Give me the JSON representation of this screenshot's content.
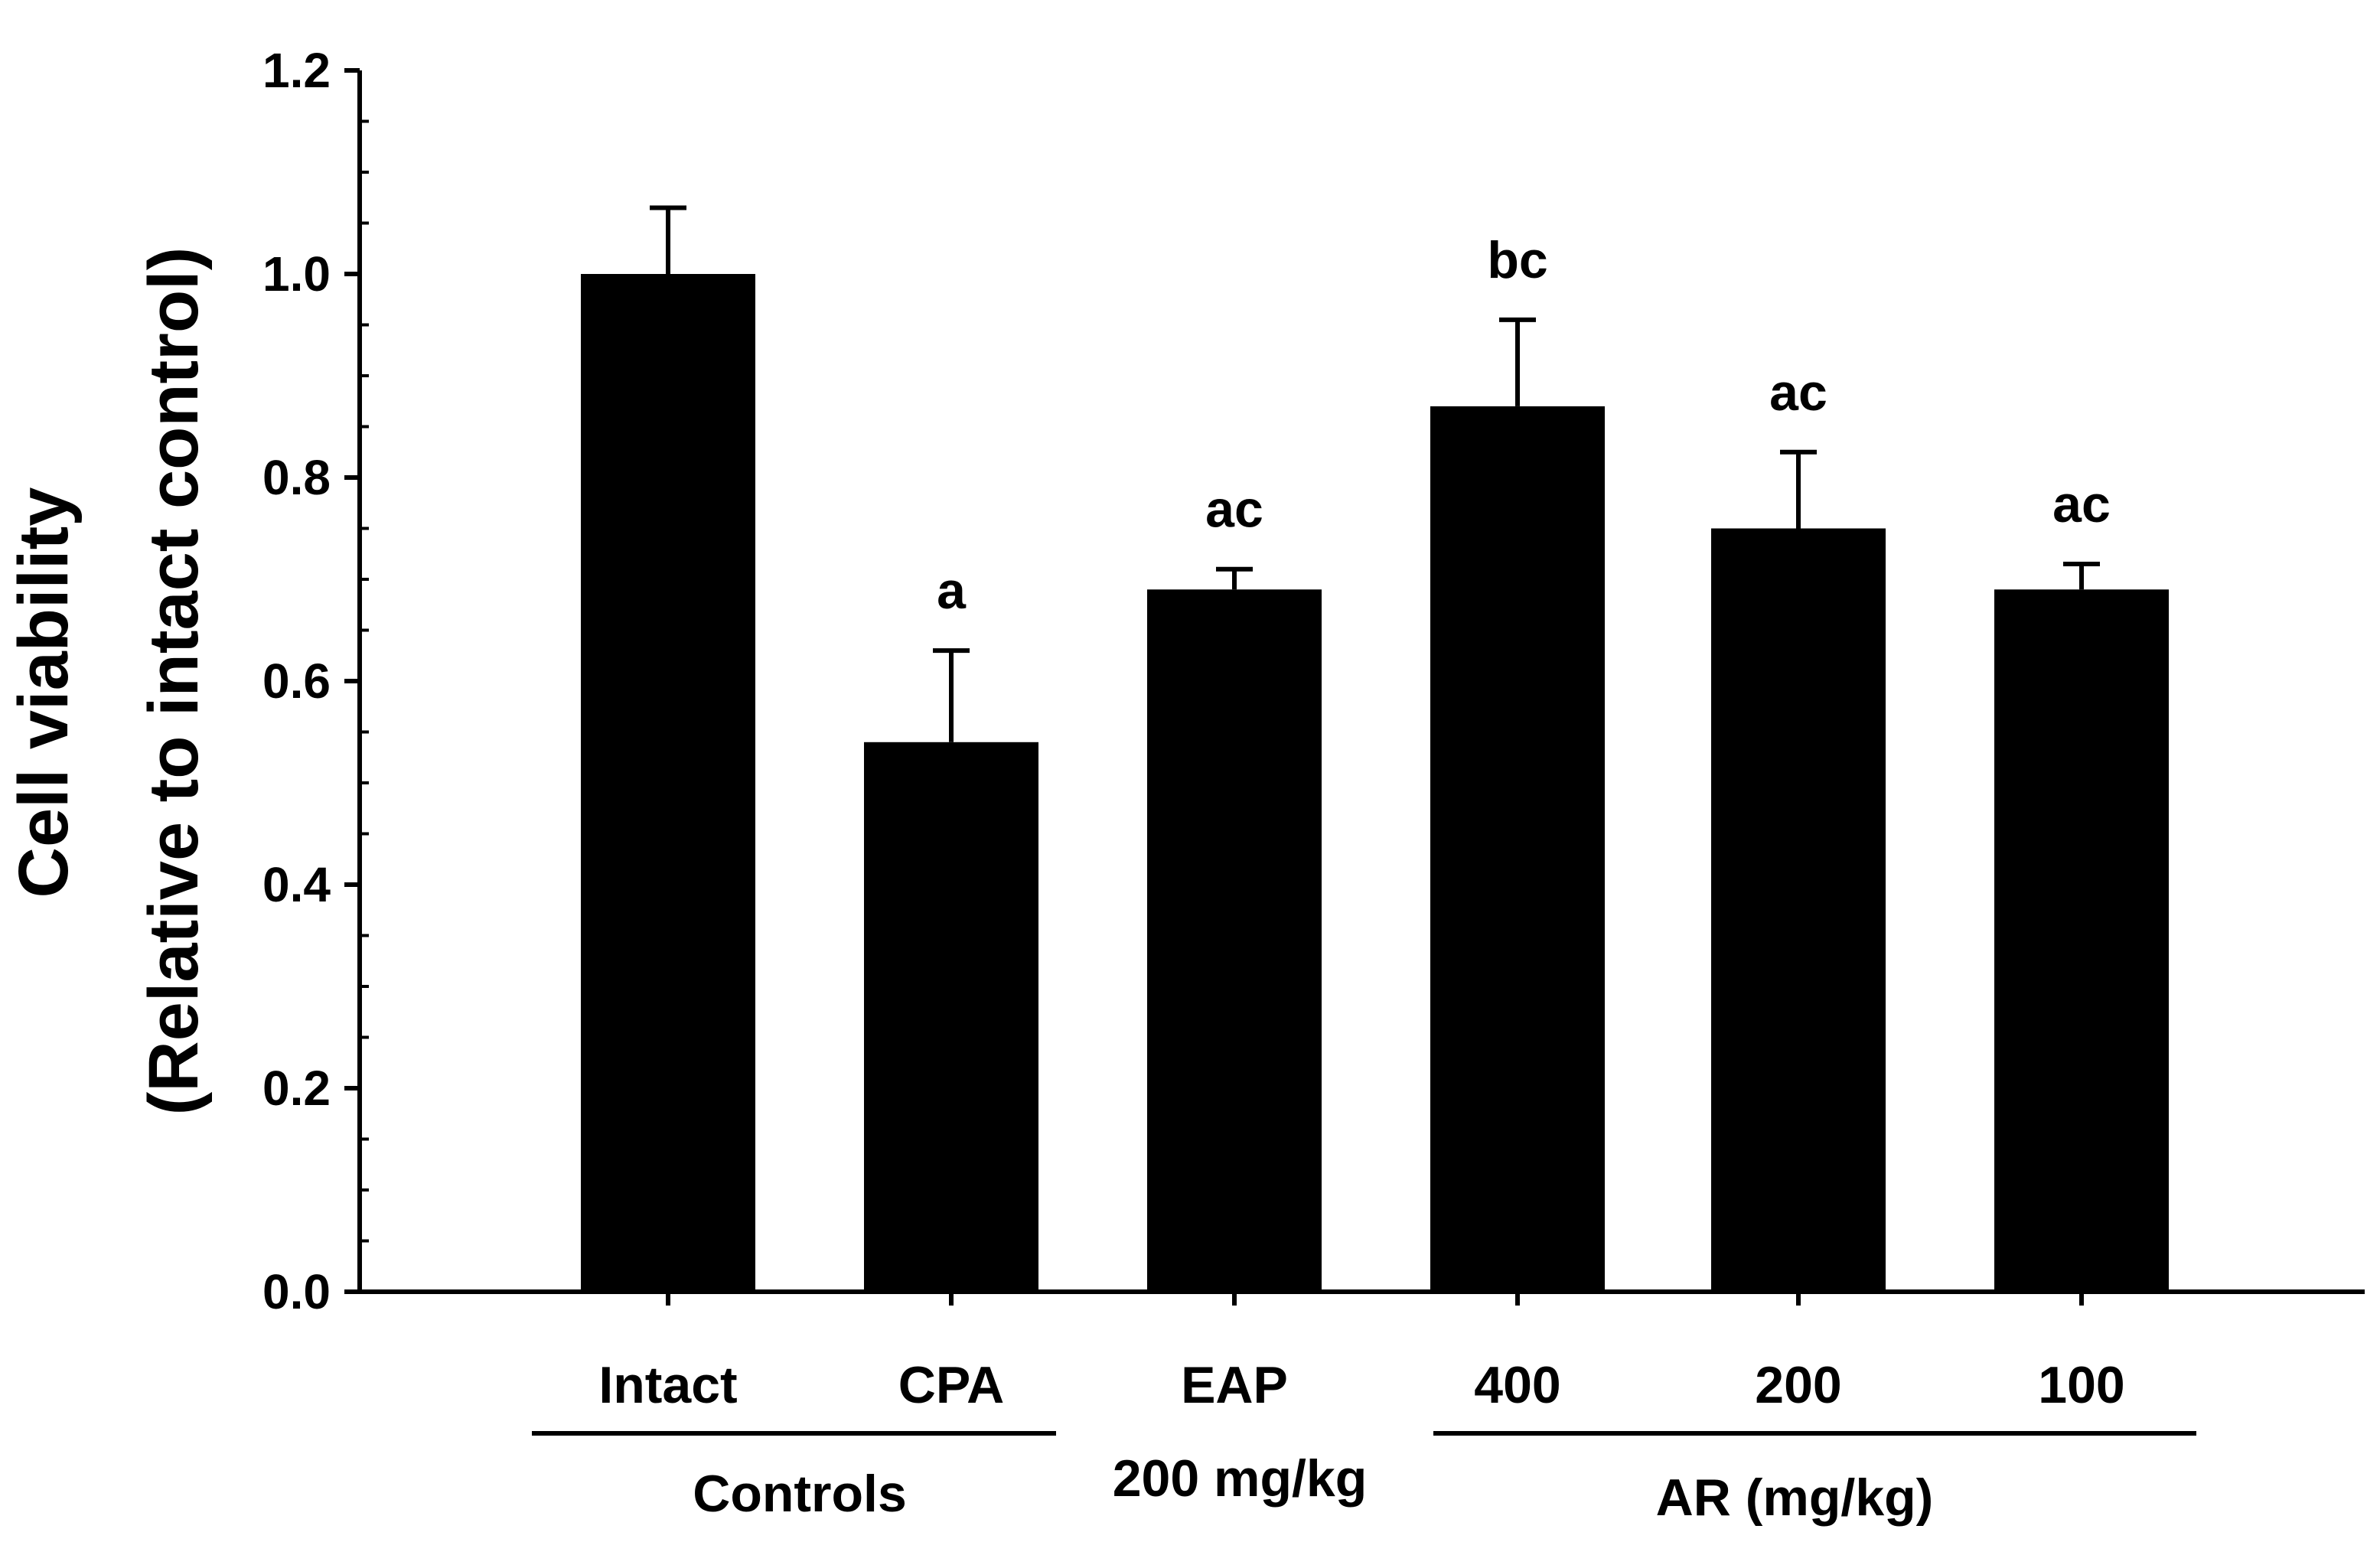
{
  "chart_data": {
    "type": "bar",
    "title": "",
    "ylabel_line1": "Cell viability",
    "ylabel_line2": "(Relative to intact control)",
    "xlabel": "",
    "ylim": [
      0.0,
      1.2
    ],
    "ytick_labels": [
      "0.0",
      "0.2",
      "0.4",
      "0.6",
      "0.8",
      "1.0",
      "1.2"
    ],
    "categories": [
      "Intact",
      "CPA",
      "EAP",
      "400",
      "200",
      "100"
    ],
    "values": [
      1.0,
      0.54,
      0.69,
      0.87,
      0.75,
      0.69
    ],
    "errors": [
      0.065,
      0.09,
      0.02,
      0.085,
      0.075,
      0.025
    ],
    "significance": [
      "",
      "a",
      "ac",
      "bc",
      "ac",
      "ac"
    ],
    "bar_color": "#000000",
    "groups": [
      {
        "label": "Controls"
      },
      {
        "label": "200 mg/kg"
      },
      {
        "label": "AR (mg/kg)"
      }
    ]
  }
}
